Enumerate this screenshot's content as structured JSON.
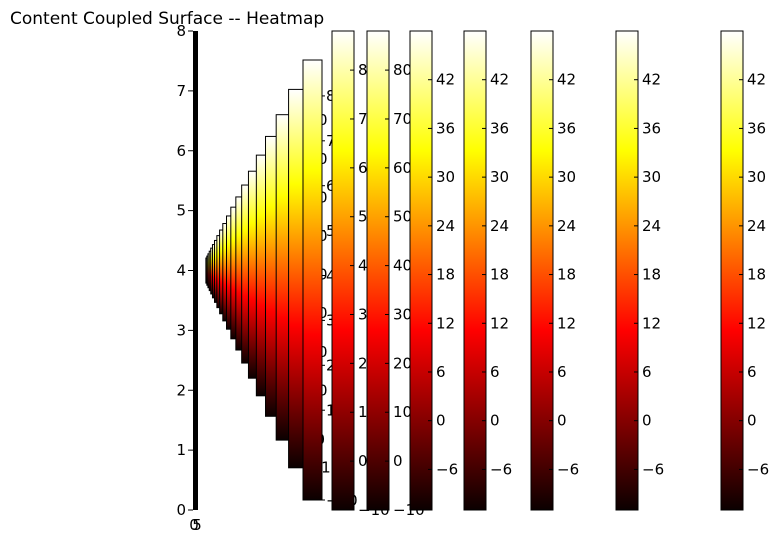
{
  "chart_data": {
    "type": "heatmap",
    "title": "Content Coupled Surface -- Heatmap",
    "colormap": "hot",
    "main_axes": {
      "ylim": [
        0,
        8
      ],
      "y_ticks": [
        "0",
        "1",
        "2",
        "3",
        "4",
        "5",
        "6",
        "7",
        "8"
      ],
      "x_tick_labels_overlapping": [
        "0",
        "5"
      ]
    },
    "large_colorbars": [
      {
        "ticks": [
          "80",
          "70",
          "60",
          "50",
          "40",
          "30",
          "20",
          "10",
          "0",
          "−10"
        ],
        "range": [
          -10,
          88
        ]
      },
      {
        "ticks": [
          "80",
          "70",
          "60",
          "50",
          "40",
          "30",
          "20",
          "10",
          "0",
          "−10"
        ],
        "range": [
          -10,
          88
        ]
      },
      {
        "ticks": [
          "42",
          "36",
          "30",
          "24",
          "18",
          "12",
          "6",
          "0",
          "−6"
        ],
        "range": [
          -11,
          48
        ]
      },
      {
        "ticks": [
          "42",
          "36",
          "30",
          "24",
          "18",
          "12",
          "6",
          "0",
          "−6"
        ],
        "range": [
          -11,
          48
        ]
      },
      {
        "ticks": [
          "42",
          "36",
          "30",
          "24",
          "18",
          "12",
          "6",
          "0",
          "−6"
        ],
        "range": [
          -11,
          48
        ]
      },
      {
        "ticks": [
          "42",
          "36",
          "30",
          "24",
          "18",
          "12",
          "6",
          "0",
          "−6"
        ],
        "range": [
          -11,
          48
        ]
      },
      {
        "ticks": [
          "42",
          "36",
          "30",
          "24",
          "18",
          "12",
          "6",
          "0",
          "−6"
        ],
        "range": [
          -11,
          48
        ]
      }
    ],
    "nested_colorbars": {
      "count": 20,
      "ticks": [
        "80",
        "70",
        "60",
        "50",
        "40",
        "30",
        "20",
        "10",
        "−10"
      ],
      "range": [
        -10,
        88
      ]
    }
  },
  "colors": {
    "hot_black": "#000000",
    "hot_red": "#ff0000",
    "hot_yellow": "#ffff00",
    "hot_white": "#ffffff"
  }
}
